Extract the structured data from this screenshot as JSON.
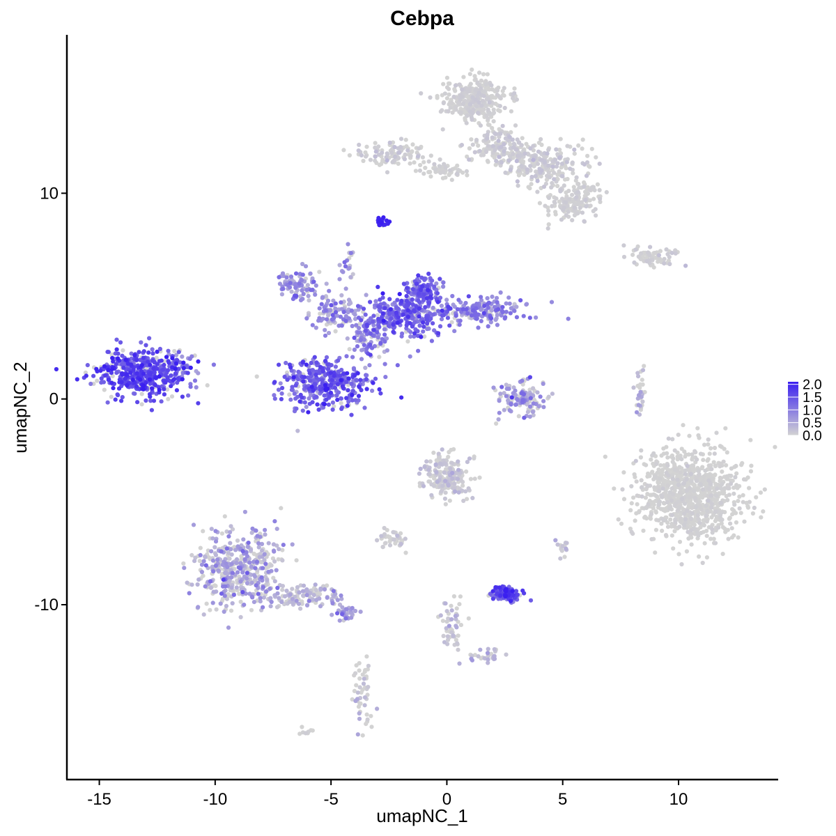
{
  "chart_data": {
    "type": "scatter",
    "title": "Cebpa",
    "xlabel": "umapNC_1",
    "ylabel": "umapNC_2",
    "xlim": [
      -16.4,
      14.3
    ],
    "ylim": [
      -18.5,
      17.7
    ],
    "x_ticks": [
      -15,
      -10,
      -5,
      0,
      5,
      10
    ],
    "y_ticks": [
      -10,
      0,
      10
    ],
    "x_tick_labels": [
      "-15",
      "-10",
      "-5",
      "0",
      "5",
      "10"
    ],
    "y_tick_labels": [
      "-10",
      "0",
      "10"
    ],
    "grid": false,
    "color_scale": {
      "low_color": "#d3d3d3",
      "high_color": "#3a1ff0",
      "min": 0.0,
      "max": 2.1,
      "breaks": [
        2.0,
        1.5,
        1.0,
        0.5,
        0.0
      ],
      "break_labels": [
        "2.0",
        "1.5",
        "1.0",
        "0.5",
        "0.0"
      ],
      "legend_placement": "right"
    },
    "clusters": [
      {
        "cx": -13.2,
        "cy": 1.2,
        "sx": 1.3,
        "sy": 0.8,
        "n": 420,
        "expr_mean": 1.6,
        "expr_sd": 0.3
      },
      {
        "cx": -11.6,
        "cy": 1.6,
        "sx": 0.6,
        "sy": 0.6,
        "n": 60,
        "expr_mean": 1.1,
        "expr_sd": 0.3
      },
      {
        "cx": -6.4,
        "cy": 5.5,
        "sx": 0.6,
        "sy": 0.5,
        "n": 90,
        "expr_mean": 0.7,
        "expr_sd": 0.3
      },
      {
        "cx": -4.9,
        "cy": 4.1,
        "sx": 0.8,
        "sy": 0.6,
        "n": 100,
        "expr_mean": 0.7,
        "expr_sd": 0.35
      },
      {
        "cx": -3.3,
        "cy": 3.1,
        "sx": 0.6,
        "sy": 0.7,
        "n": 100,
        "expr_mean": 1.0,
        "expr_sd": 0.35
      },
      {
        "cx": -5.2,
        "cy": 0.8,
        "sx": 1.3,
        "sy": 0.8,
        "n": 380,
        "expr_mean": 1.3,
        "expr_sd": 0.35
      },
      {
        "cx": -1.8,
        "cy": 4.1,
        "sx": 1.2,
        "sy": 0.7,
        "n": 300,
        "expr_mean": 1.2,
        "expr_sd": 0.35
      },
      {
        "cx": -1.0,
        "cy": 5.3,
        "sx": 0.5,
        "sy": 0.5,
        "n": 100,
        "expr_mean": 1.3,
        "expr_sd": 0.3
      },
      {
        "cx": 1.6,
        "cy": 4.3,
        "sx": 1.3,
        "sy": 0.4,
        "n": 160,
        "expr_mean": 0.9,
        "expr_sd": 0.35
      },
      {
        "cx": -4.3,
        "cy": 6.5,
        "sx": 0.25,
        "sy": 0.7,
        "n": 20,
        "expr_mean": 0.8,
        "expr_sd": 0.3
      },
      {
        "cx": -2.8,
        "cy": 8.6,
        "sx": 0.15,
        "sy": 0.15,
        "n": 20,
        "expr_mean": 2.0,
        "expr_sd": 0.1
      },
      {
        "cx": 1.2,
        "cy": 14.6,
        "sx": 0.9,
        "sy": 0.7,
        "n": 320,
        "expr_mean": 0.03,
        "expr_sd": 0.05
      },
      {
        "cx": 2.3,
        "cy": 12.3,
        "sx": 0.9,
        "sy": 0.6,
        "n": 160,
        "expr_mean": 0.05,
        "expr_sd": 0.1
      },
      {
        "cx": 4.2,
        "cy": 11.4,
        "sx": 1.2,
        "sy": 0.7,
        "n": 200,
        "expr_mean": 0.05,
        "expr_sd": 0.1
      },
      {
        "cx": 5.4,
        "cy": 9.7,
        "sx": 0.7,
        "sy": 0.7,
        "n": 160,
        "expr_mean": 0.03,
        "expr_sd": 0.05
      },
      {
        "cx": -2.3,
        "cy": 11.9,
        "sx": 1.0,
        "sy": 0.4,
        "n": 100,
        "expr_mean": 0.05,
        "expr_sd": 0.1
      },
      {
        "cx": -0.2,
        "cy": 11.1,
        "sx": 0.9,
        "sy": 0.25,
        "n": 60,
        "expr_mean": 0.0,
        "expr_sd": 0.05
      },
      {
        "cx": 8.8,
        "cy": 6.9,
        "sx": 0.9,
        "sy": 0.3,
        "n": 70,
        "expr_mean": 0.05,
        "expr_sd": 0.1
      },
      {
        "cx": 3.3,
        "cy": 0.0,
        "sx": 0.8,
        "sy": 0.6,
        "n": 120,
        "expr_mean": 0.6,
        "expr_sd": 0.4
      },
      {
        "cx": 8.3,
        "cy": 0.3,
        "sx": 0.15,
        "sy": 0.8,
        "n": 30,
        "expr_mean": 0.2,
        "expr_sd": 0.25
      },
      {
        "cx": 10.5,
        "cy": -4.7,
        "sx": 1.5,
        "sy": 1.5,
        "n": 900,
        "expr_mean": 0.0,
        "expr_sd": 0.04
      },
      {
        "cx": -9.0,
        "cy": -8.3,
        "sx": 1.2,
        "sy": 1.2,
        "n": 450,
        "expr_mean": 0.35,
        "expr_sd": 0.4
      },
      {
        "cx": -6.2,
        "cy": -9.6,
        "sx": 1.1,
        "sy": 0.4,
        "n": 120,
        "expr_mean": 0.25,
        "expr_sd": 0.35
      },
      {
        "cx": -4.3,
        "cy": -10.4,
        "sx": 0.3,
        "sy": 0.25,
        "n": 30,
        "expr_mean": 0.6,
        "expr_sd": 0.3
      },
      {
        "cx": -3.6,
        "cy": -14.2,
        "sx": 0.25,
        "sy": 1.2,
        "n": 50,
        "expr_mean": 0.1,
        "expr_sd": 0.2
      },
      {
        "cx": 0.0,
        "cy": -3.8,
        "sx": 0.7,
        "sy": 0.7,
        "n": 200,
        "expr_mean": 0.1,
        "expr_sd": 0.15
      },
      {
        "cx": -2.4,
        "cy": -6.8,
        "sx": 0.4,
        "sy": 0.3,
        "n": 40,
        "expr_mean": 0.05,
        "expr_sd": 0.1
      },
      {
        "cx": 2.5,
        "cy": -9.5,
        "sx": 0.4,
        "sy": 0.25,
        "n": 120,
        "expr_mean": 1.5,
        "expr_sd": 0.3
      },
      {
        "cx": 0.2,
        "cy": -11.0,
        "sx": 0.35,
        "sy": 0.9,
        "n": 50,
        "expr_mean": 0.1,
        "expr_sd": 0.2
      },
      {
        "cx": 1.8,
        "cy": -12.5,
        "sx": 0.5,
        "sy": 0.25,
        "n": 30,
        "expr_mean": 0.3,
        "expr_sd": 0.3
      },
      {
        "cx": 5.0,
        "cy": -7.2,
        "sx": 0.2,
        "sy": 0.3,
        "n": 15,
        "expr_mean": 0.2,
        "expr_sd": 0.2
      },
      {
        "cx": -6.0,
        "cy": -16.2,
        "sx": 0.2,
        "sy": 0.1,
        "n": 8,
        "expr_mean": 0.0,
        "expr_sd": 0.05
      }
    ]
  }
}
